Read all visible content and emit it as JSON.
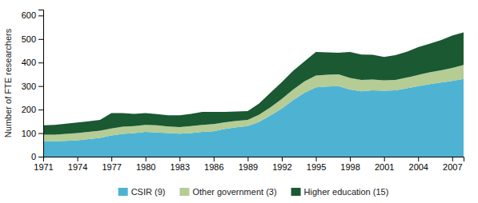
{
  "chart_data": {
    "type": "area",
    "stacked": true,
    "ylabel": "Number of FTE researchers",
    "x": [
      1971,
      1972,
      1973,
      1974,
      1975,
      1976,
      1977,
      1978,
      1979,
      1980,
      1981,
      1982,
      1983,
      1984,
      1985,
      1986,
      1987,
      1988,
      1989,
      1990,
      1991,
      1992,
      1993,
      1994,
      1995,
      1996,
      1997,
      1998,
      1999,
      2000,
      2001,
      2002,
      2003,
      2004,
      2005,
      2006,
      2007,
      2008
    ],
    "series": [
      {
        "name": "CSIR (9)",
        "color": "#4eb3d3",
        "values": [
          65,
          65,
          67,
          70,
          75,
          80,
          90,
          97,
          100,
          105,
          103,
          100,
          98,
          100,
          105,
          108,
          118,
          125,
          130,
          148,
          175,
          205,
          240,
          272,
          295,
          298,
          300,
          285,
          278,
          282,
          280,
          282,
          290,
          300,
          308,
          315,
          322,
          330
        ]
      },
      {
        "name": "Other government (3)",
        "color": "#b5cc94",
        "values": [
          28,
          28,
          30,
          30,
          30,
          30,
          30,
          30,
          30,
          30,
          30,
          28,
          28,
          30,
          30,
          30,
          28,
          27,
          26,
          30,
          35,
          40,
          45,
          48,
          50,
          50,
          50,
          50,
          48,
          46,
          44,
          44,
          46,
          47,
          50,
          52,
          55,
          60
        ]
      },
      {
        "name": "Higher education (15)",
        "color": "#1a5932",
        "values": [
          40,
          42,
          43,
          45,
          45,
          46,
          65,
          58,
          52,
          50,
          48,
          48,
          50,
          52,
          55,
          52,
          44,
          40,
          38,
          48,
          62,
          72,
          80,
          85,
          100,
          95,
          92,
          110,
          108,
          105,
          100,
          105,
          110,
          118,
          122,
          128,
          138,
          138
        ]
      }
    ],
    "xlim": [
      1971,
      2008
    ],
    "xticks": [
      1971,
      1974,
      1977,
      1980,
      1983,
      1986,
      1989,
      1992,
      1995,
      1998,
      2001,
      2004,
      2007
    ],
    "ylim": [
      0,
      625
    ],
    "yticks": [
      0,
      100,
      200,
      300,
      400,
      500,
      600
    ],
    "grid": false,
    "legend": "bottom"
  }
}
